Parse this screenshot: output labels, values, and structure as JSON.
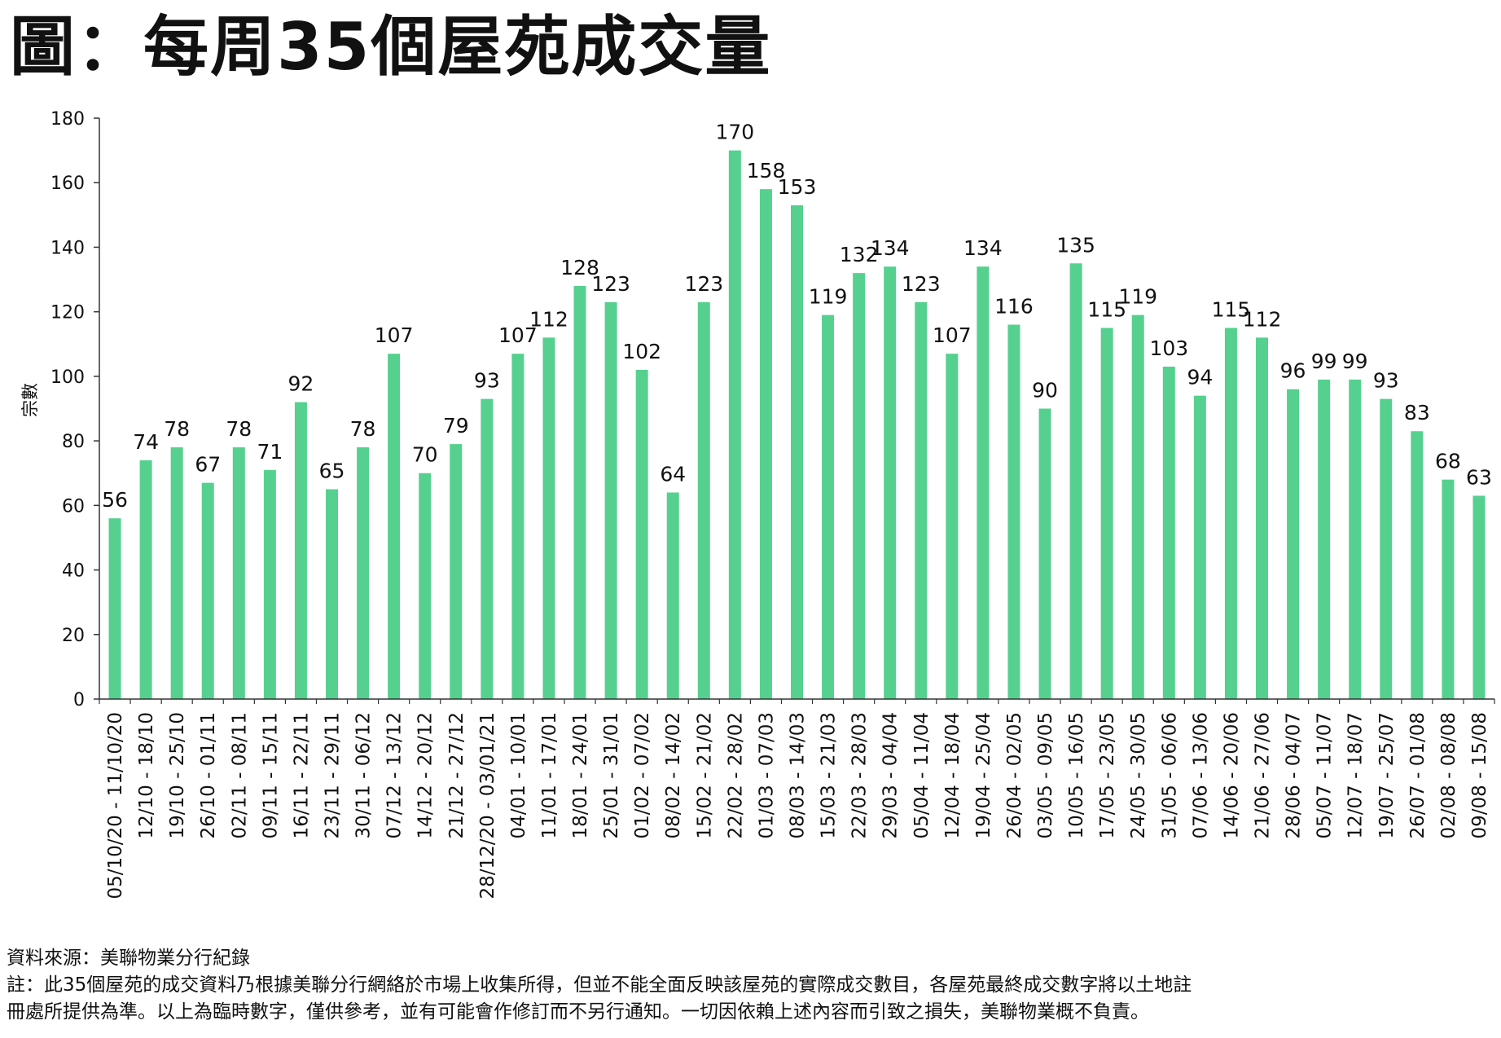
{
  "title": "圖：每周35個屋苑成交量",
  "colors": {
    "bar": "#56d08f",
    "axis": "#333333",
    "text": "#111111"
  },
  "chart_data": {
    "type": "bar",
    "title": "圖：每周35個屋苑成交量",
    "xlabel": "",
    "ylabel": "宗數",
    "ylim": [
      0,
      180
    ],
    "yticks": [
      0,
      20,
      40,
      60,
      80,
      100,
      120,
      140,
      160,
      180
    ],
    "grid": false,
    "categories": [
      "05/10/20 - 11/10/20",
      "12/10 - 18/10",
      "19/10 - 25/10",
      "26/10 - 01/11",
      "02/11 - 08/11",
      "09/11 - 15/11",
      "16/11 - 22/11",
      "23/11 - 29/11",
      "30/11 - 06/12",
      "07/12 - 13/12",
      "14/12 - 20/12",
      "21/12 - 27/12",
      "28/12/20 - 03/01/21",
      "04/01 - 10/01",
      "11/01 - 17/01",
      "18/01 - 24/01",
      "25/01 - 31/01",
      "01/02 - 07/02",
      "08/02 - 14/02",
      "15/02 - 21/02",
      "22/02 - 28/02",
      "01/03 - 07/03",
      "08/03 - 14/03",
      "15/03 - 21/03",
      "22/03 - 28/03",
      "29/03 - 04/04",
      "05/04 - 11/04",
      "12/04 - 18/04",
      "19/04 - 25/04",
      "26/04 - 02/05",
      "03/05 - 09/05",
      "10/05 - 16/05",
      "17/05 - 23/05",
      "24/05 - 30/05",
      "31/05 - 06/06",
      "07/06 - 13/06",
      "14/06 - 20/06",
      "21/06 - 27/06",
      "28/06 - 04/07",
      "05/07 - 11/07",
      "12/07 - 18/07",
      "19/07 - 25/07",
      "26/07 - 01/08",
      "02/08 - 08/08",
      "09/08 - 15/08"
    ],
    "values": [
      56,
      74,
      78,
      67,
      78,
      71,
      92,
      65,
      78,
      107,
      70,
      79,
      93,
      107,
      112,
      128,
      123,
      102,
      64,
      123,
      170,
      158,
      153,
      119,
      132,
      134,
      123,
      107,
      134,
      116,
      90,
      135,
      115,
      119,
      103,
      94,
      115,
      112,
      96,
      99,
      99,
      93,
      83,
      68,
      63
    ],
    "data_labels": true
  },
  "footer": {
    "source": "資料來源：美聯物業分行紀錄",
    "note_line1": "註：此35個屋苑的成交資料乃根據美聯分行網絡於市場上收集所得，但並不能全面反映該屋苑的實際成交數目，各屋苑最終成交數字將以土地註",
    "note_line2": "冊處所提供為準。以上為臨時數字，僅供參考，並有可能會作修訂而不另行通知。一切因依賴上述內容而引致之損失，美聯物業概不負責。"
  }
}
